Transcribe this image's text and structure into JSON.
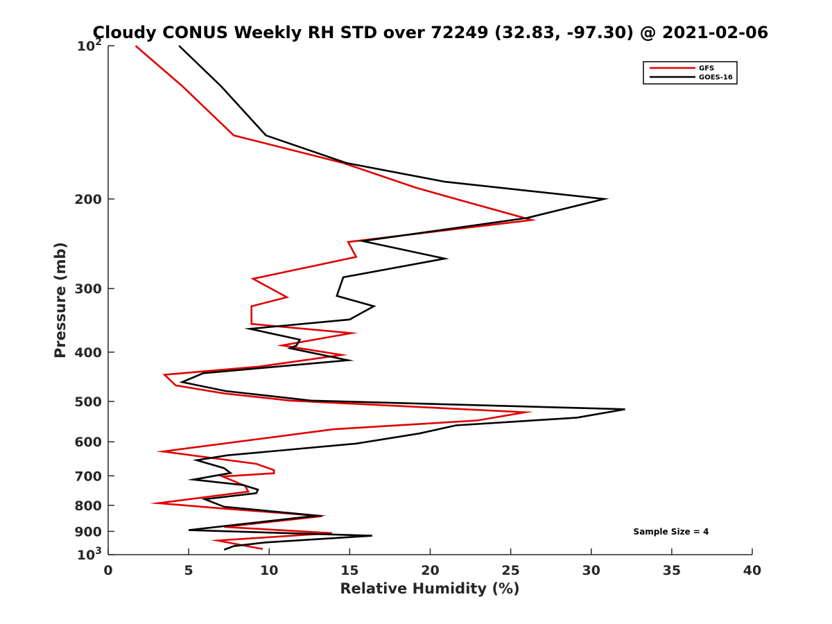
{
  "chart_data": {
    "type": "line",
    "title": "Cloudy CONUS Weekly RH STD over 72249 (32.83, -97.30) @ 2021-02-06",
    "xlabel": "Relative Humidity (%)",
    "ylabel": "Pressure (mb)",
    "xlim": [
      0,
      40
    ],
    "ylim": [
      100,
      1000
    ],
    "y_scale": "log",
    "y_reversed": true,
    "grid": false,
    "legend_position": "top-right",
    "x_ticks": [
      "0",
      "5",
      "10",
      "15",
      "20",
      "25",
      "30",
      "35",
      "40"
    ],
    "y_ticks": [
      {
        "value": 100,
        "base": "10",
        "exp": "2"
      },
      {
        "value": 200,
        "label": "200"
      },
      {
        "value": 300,
        "label": "300"
      },
      {
        "value": 400,
        "label": "400"
      },
      {
        "value": 500,
        "label": "500"
      },
      {
        "value": 600,
        "label": "600"
      },
      {
        "value": 700,
        "label": "700"
      },
      {
        "value": 800,
        "label": "800"
      },
      {
        "value": 900,
        "label": "900"
      },
      {
        "value": 1000,
        "base": "10",
        "exp": "3"
      }
    ],
    "annotation": "Sample Size = 4",
    "series": [
      {
        "name": "GFS",
        "color": "#e00000",
        "x": [
          1.7,
          4.6,
          7.8,
          14.6,
          19.1,
          21.6,
          26.3,
          14.9,
          15.4,
          9.0,
          11.1,
          8.9,
          8.9,
          15.1,
          10.8,
          14.5,
          9.4,
          3.5,
          4.2,
          7.2,
          11.3,
          25.9,
          22.9,
          14.0,
          3.4,
          9.2,
          10.3,
          10.3,
          7.1,
          8.5,
          8.7,
          3.1,
          7.2,
          13.3,
          7.2,
          13.9,
          6.8,
          9.6
        ],
        "y": [
          100,
          120,
          150,
          170,
          190,
          200,
          220,
          243,
          260,
          287,
          312,
          325,
          352,
          367,
          388,
          405,
          427,
          443,
          465,
          482,
          498,
          525,
          545,
          567,
          627,
          663,
          682,
          692,
          702,
          732,
          752,
          792,
          812,
          840,
          882,
          907,
          938,
          975
        ]
      },
      {
        "name": "GOES-16",
        "color": "#000000",
        "x": [
          4.4,
          7.0,
          9.8,
          14.8,
          20.9,
          30.8,
          26.0,
          15.8,
          20.9,
          14.6,
          14.2,
          16.5,
          15.0,
          8.8,
          11.9,
          11.7,
          11.3,
          14.9,
          5.9,
          4.6,
          7.3,
          12.6,
          32.1,
          29.1,
          21.6,
          19.3,
          15.4,
          7.4,
          5.5,
          7.2,
          7.6,
          5.3,
          8.4,
          9.3,
          9.2,
          6.0,
          7.2,
          13.0,
          5.0,
          16.4,
          9.8,
          7.8,
          7.2
        ],
        "y": [
          100,
          120,
          150,
          170,
          185,
          200,
          218,
          242,
          262,
          285,
          310,
          325,
          345,
          360,
          378,
          388,
          393,
          415,
          440,
          458,
          477,
          498,
          518,
          538,
          557,
          578,
          605,
          638,
          652,
          676,
          691,
          712,
          730,
          745,
          757,
          778,
          805,
          838,
          895,
          918,
          946,
          962,
          978
        ]
      }
    ]
  }
}
